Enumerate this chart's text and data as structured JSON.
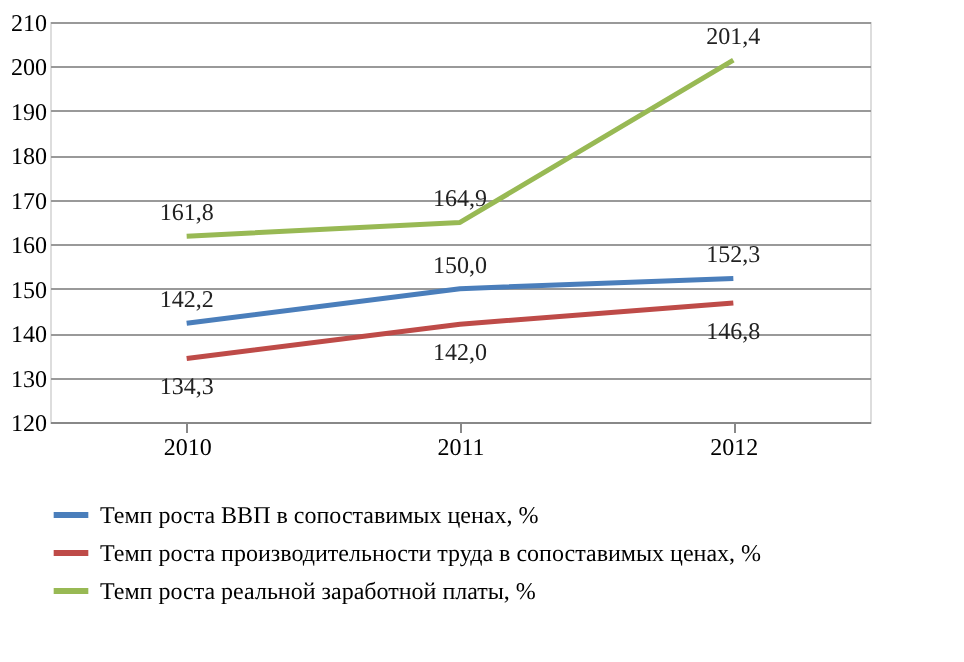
{
  "chart_data": {
    "type": "line",
    "categories": [
      "2010",
      "2011",
      "2012"
    ],
    "series": [
      {
        "name": "Темп роста ВВП в сопоставимых ценах, %",
        "color": "#4a7ebb",
        "values": [
          142.2,
          150.0,
          152.3
        ],
        "value_labels": [
          "142,2",
          "150,0",
          "152,3"
        ]
      },
      {
        "name": "Темп роста производительности труда в сопоставимых ценах, %",
        "color": "#be4b48",
        "values": [
          134.3,
          142.0,
          146.8
        ],
        "value_labels": [
          "134,3",
          "142,0",
          "146,8"
        ]
      },
      {
        "name": "Темп роста реальной заработной платы, %",
        "color": "#98b954",
        "values": [
          161.8,
          164.9,
          201.4
        ],
        "value_labels": [
          "161,8",
          "164,9",
          "201,4"
        ]
      }
    ],
    "ylim": [
      120,
      210
    ],
    "yticks": [
      120,
      130,
      140,
      150,
      160,
      170,
      180,
      190,
      200,
      210
    ],
    "grid": "y",
    "legend": "bottom",
    "marker": "none",
    "line_style": "solid"
  }
}
